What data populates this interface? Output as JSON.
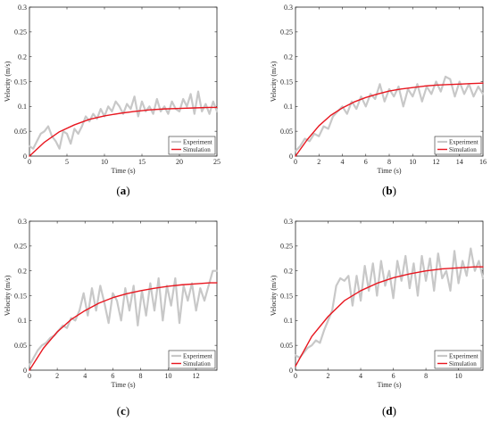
{
  "chart_data": [
    {
      "type": "line",
      "panel_label": "(a)",
      "panel_letter": "a",
      "xlabel": "Time (s)",
      "ylabel": "Velocity (m/s)",
      "xlim": [
        0,
        25
      ],
      "ylim": [
        0,
        0.3
      ],
      "xticks": [
        0,
        5,
        10,
        15,
        20,
        25
      ],
      "yticks": [
        0,
        0.05,
        0.1,
        0.15,
        0.2,
        0.25,
        0.3
      ],
      "ytick_labels": [
        "0",
        "0.05",
        "0.1",
        "0.15",
        "0.2",
        "0.25",
        "0.3"
      ],
      "legend_position": "bottom-right",
      "series": [
        {
          "name": "Experiment",
          "color": "#c8c8c8",
          "x": [
            0,
            0.5,
            1,
            1.5,
            2,
            2.5,
            3,
            3.5,
            4,
            4.5,
            5,
            5.5,
            6,
            6.5,
            7,
            7.5,
            8,
            8.5,
            9,
            9.5,
            10,
            10.5,
            11,
            11.5,
            12,
            12.5,
            13,
            13.5,
            14,
            14.5,
            15,
            15.5,
            16,
            16.5,
            17,
            17.5,
            18,
            18.5,
            19,
            19.5,
            20,
            20.5,
            21,
            21.5,
            22,
            22.5,
            23,
            23.5,
            24,
            24.5,
            25
          ],
          "y": [
            0.02,
            0.015,
            0.03,
            0.045,
            0.05,
            0.06,
            0.04,
            0.03,
            0.015,
            0.05,
            0.045,
            0.025,
            0.055,
            0.045,
            0.06,
            0.08,
            0.07,
            0.085,
            0.075,
            0.095,
            0.08,
            0.1,
            0.09,
            0.11,
            0.1,
            0.085,
            0.105,
            0.095,
            0.12,
            0.08,
            0.11,
            0.09,
            0.1,
            0.085,
            0.115,
            0.09,
            0.1,
            0.085,
            0.11,
            0.095,
            0.09,
            0.115,
            0.1,
            0.125,
            0.085,
            0.13,
            0.09,
            0.105,
            0.085,
            0.11,
            0.09
          ]
        },
        {
          "name": "Simulation",
          "color": "#e8161f",
          "tau": 6.0,
          "final": 0.1,
          "x": [
            0,
            2,
            4,
            6,
            8,
            10,
            12,
            14,
            16,
            18,
            20,
            22,
            24,
            25
          ],
          "y": [
            0,
            0.028,
            0.049,
            0.063,
            0.074,
            0.081,
            0.086,
            0.09,
            0.093,
            0.095,
            0.096,
            0.097,
            0.098,
            0.098
          ]
        }
      ]
    },
    {
      "type": "line",
      "panel_label": "(b)",
      "panel_letter": "b",
      "xlabel": "Time (s)",
      "ylabel": "Velocity (m/s)",
      "xlim": [
        0,
        16
      ],
      "ylim": [
        0,
        0.3
      ],
      "xticks": [
        0,
        2,
        4,
        6,
        8,
        10,
        12,
        14,
        16
      ],
      "yticks": [
        0,
        0.05,
        0.1,
        0.15,
        0.2,
        0.25,
        0.3
      ],
      "ytick_labels": [
        "0",
        "0.05",
        "0.1",
        "0.15",
        "0.2",
        "0.25",
        "0.3"
      ],
      "legend_position": "bottom-right",
      "series": [
        {
          "name": "Experiment",
          "color": "#c8c8c8",
          "x": [
            0,
            0.4,
            0.8,
            1.2,
            1.6,
            2,
            2.4,
            2.8,
            3.2,
            3.6,
            4,
            4.4,
            4.8,
            5.2,
            5.6,
            6,
            6.4,
            6.8,
            7.2,
            7.6,
            8,
            8.4,
            8.8,
            9.2,
            9.6,
            10,
            10.4,
            10.8,
            11.2,
            11.6,
            12,
            12.4,
            12.8,
            13.2,
            13.6,
            14,
            14.4,
            14.8,
            15.2,
            15.6,
            16
          ],
          "y": [
            0.01,
            0.02,
            0.035,
            0.03,
            0.045,
            0.04,
            0.06,
            0.055,
            0.08,
            0.09,
            0.1,
            0.085,
            0.11,
            0.095,
            0.12,
            0.1,
            0.125,
            0.115,
            0.145,
            0.11,
            0.135,
            0.12,
            0.14,
            0.1,
            0.135,
            0.12,
            0.145,
            0.11,
            0.14,
            0.125,
            0.15,
            0.13,
            0.16,
            0.155,
            0.12,
            0.15,
            0.125,
            0.145,
            0.12,
            0.14,
            0.125
          ]
        },
        {
          "name": "Simulation",
          "color": "#e8161f",
          "tau": 3.8,
          "final": 0.15,
          "x": [
            0,
            1,
            2,
            3,
            4,
            5,
            6,
            7,
            8,
            9,
            10,
            11,
            12,
            13,
            14,
            15,
            16
          ],
          "y": [
            0,
            0.033,
            0.061,
            0.082,
            0.097,
            0.109,
            0.118,
            0.125,
            0.131,
            0.135,
            0.138,
            0.141,
            0.143,
            0.144,
            0.145,
            0.146,
            0.147
          ]
        }
      ]
    },
    {
      "type": "line",
      "panel_label": "(c)",
      "panel_letter": "c",
      "xlabel": "Time (s)",
      "ylabel": "Velocity (m/s)",
      "xlim": [
        0,
        13.5
      ],
      "ylim": [
        0,
        0.3
      ],
      "xticks": [
        0,
        2,
        4,
        6,
        8,
        10,
        12
      ],
      "yticks": [
        0,
        0.05,
        0.1,
        0.15,
        0.2,
        0.25,
        0.3
      ],
      "ytick_labels": [
        "0",
        "0.05",
        "0.1",
        "0.15",
        "0.2",
        "0.25",
        "0.3"
      ],
      "legend_position": "bottom-right",
      "series": [
        {
          "name": "Experiment",
          "color": "#c8c8c8",
          "x": [
            0,
            0.3,
            0.6,
            0.9,
            1.2,
            1.5,
            1.8,
            2.1,
            2.4,
            2.7,
            3,
            3.3,
            3.6,
            3.9,
            4.2,
            4.5,
            4.8,
            5.1,
            5.4,
            5.7,
            6,
            6.3,
            6.6,
            6.9,
            7.2,
            7.5,
            7.8,
            8.1,
            8.4,
            8.7,
            9,
            9.3,
            9.6,
            9.9,
            10.2,
            10.5,
            10.8,
            11.1,
            11.4,
            11.7,
            12,
            12.3,
            12.6,
            12.9,
            13.2,
            13.5
          ],
          "y": [
            0.01,
            0.025,
            0.04,
            0.05,
            0.055,
            0.065,
            0.07,
            0.08,
            0.09,
            0.085,
            0.105,
            0.1,
            0.12,
            0.155,
            0.11,
            0.165,
            0.12,
            0.17,
            0.135,
            0.095,
            0.155,
            0.14,
            0.1,
            0.165,
            0.12,
            0.17,
            0.09,
            0.16,
            0.11,
            0.175,
            0.12,
            0.185,
            0.1,
            0.17,
            0.13,
            0.185,
            0.095,
            0.17,
            0.14,
            0.175,
            0.12,
            0.165,
            0.14,
            0.17,
            0.2,
            0.2
          ]
        },
        {
          "name": "Simulation",
          "color": "#e8161f",
          "tau": 3.6,
          "final": 0.18,
          "x": [
            0,
            1,
            2,
            3,
            4,
            5,
            6,
            7,
            8,
            9,
            10,
            11,
            12,
            13,
            13.5
          ],
          "y": [
            0,
            0.044,
            0.077,
            0.102,
            0.12,
            0.135,
            0.146,
            0.154,
            0.16,
            0.165,
            0.169,
            0.172,
            0.174,
            0.176,
            0.176
          ]
        }
      ]
    },
    {
      "type": "line",
      "panel_label": "(d)",
      "panel_letter": "d",
      "xlabel": "Time (s)",
      "ylabel": "Velocity (m/s)",
      "xlim": [
        0,
        11.5
      ],
      "ylim": [
        0,
        0.3
      ],
      "xticks": [
        0,
        2,
        4,
        6,
        8,
        10
      ],
      "yticks": [
        0,
        0.05,
        0.1,
        0.15,
        0.2,
        0.25,
        0.3
      ],
      "ytick_labels": [
        "0",
        "0.05",
        "0.1",
        "0.15",
        "0.2",
        "0.25",
        "0.3"
      ],
      "legend_position": "bottom-right",
      "series": [
        {
          "name": "Experiment",
          "color": "#c8c8c8",
          "x": [
            0,
            0.25,
            0.5,
            0.75,
            1,
            1.25,
            1.5,
            1.75,
            2,
            2.25,
            2.5,
            2.75,
            3,
            3.25,
            3.5,
            3.75,
            4,
            4.25,
            4.5,
            4.75,
            5,
            5.25,
            5.5,
            5.75,
            6,
            6.25,
            6.5,
            6.75,
            7,
            7.25,
            7.5,
            7.75,
            8,
            8.25,
            8.5,
            8.75,
            9,
            9.25,
            9.5,
            9.75,
            10,
            10.25,
            10.5,
            10.75,
            11,
            11.25,
            11.5
          ],
          "y": [
            0.03,
            0.025,
            0.035,
            0.045,
            0.05,
            0.06,
            0.055,
            0.08,
            0.1,
            0.12,
            0.17,
            0.185,
            0.18,
            0.19,
            0.13,
            0.19,
            0.14,
            0.21,
            0.16,
            0.215,
            0.15,
            0.22,
            0.17,
            0.2,
            0.145,
            0.22,
            0.18,
            0.23,
            0.165,
            0.215,
            0.15,
            0.23,
            0.18,
            0.225,
            0.16,
            0.235,
            0.185,
            0.2,
            0.16,
            0.24,
            0.175,
            0.22,
            0.19,
            0.245,
            0.2,
            0.22,
            0.185
          ]
        },
        {
          "name": "Simulation",
          "color": "#e8161f",
          "tau": 2.4,
          "final": 0.21,
          "x": [
            0,
            1,
            2,
            3,
            4,
            5,
            6,
            7,
            8,
            9,
            10,
            11,
            11.5
          ],
          "y": [
            0.008,
            0.068,
            0.108,
            0.14,
            0.16,
            0.175,
            0.186,
            0.194,
            0.2,
            0.204,
            0.206,
            0.208,
            0.208
          ]
        }
      ]
    }
  ]
}
